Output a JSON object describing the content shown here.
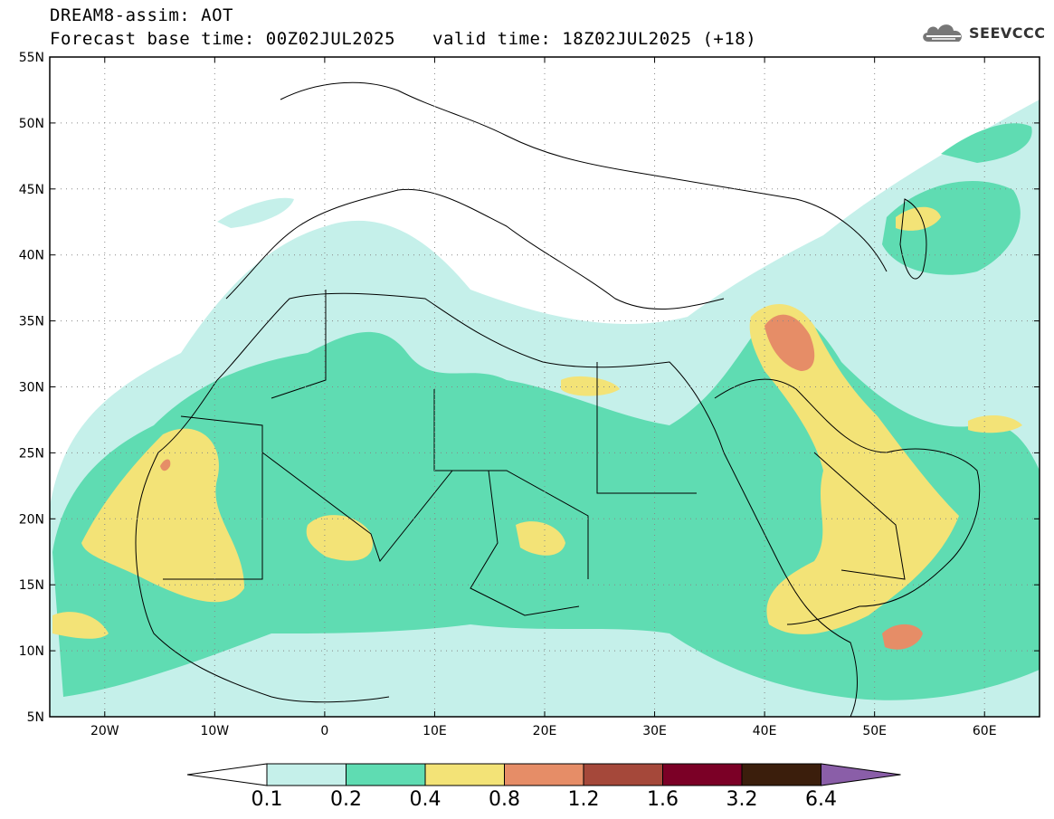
{
  "header": {
    "title": "DREAM8-assim: AOT",
    "base_time": "Forecast base time: 00Z02JUL2025",
    "valid_time": "valid time: 18Z02JUL2025 (+18)"
  },
  "logo": {
    "text": "SEEVCCC",
    "icon": "cloud-icon"
  },
  "map": {
    "lon_range": [
      -25,
      65
    ],
    "lat_range": [
      5,
      55
    ],
    "lat_labels": [
      "55N",
      "50N",
      "45N",
      "40N",
      "35N",
      "30N",
      "25N",
      "20N",
      "15N",
      "10N",
      "5N"
    ],
    "lon_labels": [
      "20W",
      "10W",
      "0",
      "10E",
      "20E",
      "30E",
      "40E",
      "50E",
      "60E"
    ],
    "grid": "dotted"
  },
  "colorbar": {
    "labels": [
      "0.1",
      "0.2",
      "0.4",
      "0.8",
      "1.2",
      "1.6",
      "3.2",
      "6.4"
    ],
    "colors": [
      "#c5f0ea",
      "#5fdcb2",
      "#f3e377",
      "#e68d67",
      "#a5483a",
      "#7b0026",
      "#3b1e0c",
      "#8a5ea8"
    ],
    "under_color": "#ffffff"
  }
}
